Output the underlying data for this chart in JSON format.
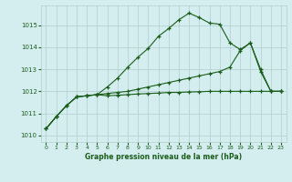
{
  "title": "Graphe pression niveau de la mer (hPa)",
  "background_color": "#d4eef0",
  "grid_color": "#b0cccc",
  "line_color": "#1a5c1a",
  "xlim": [
    -0.5,
    23.5
  ],
  "ylim": [
    1009.7,
    1015.9
  ],
  "yticks": [
    1010,
    1011,
    1012,
    1013,
    1014,
    1015
  ],
  "xticks": [
    0,
    1,
    2,
    3,
    4,
    5,
    6,
    7,
    8,
    9,
    10,
    11,
    12,
    13,
    14,
    15,
    16,
    17,
    18,
    19,
    20,
    21,
    22,
    23
  ],
  "series": {
    "line1": [
      1010.3,
      1010.85,
      1011.35,
      1011.75,
      1011.8,
      1011.85,
      1012.2,
      1012.6,
      1013.1,
      1013.55,
      1013.95,
      1014.5,
      1014.85,
      1015.25,
      1015.55,
      1015.35,
      1015.1,
      1015.05,
      1014.2,
      1013.9,
      1014.2,
      1012.9,
      1012.0,
      1012.0
    ],
    "line2": [
      1010.3,
      1010.85,
      1011.35,
      1011.75,
      1011.8,
      1011.85,
      1011.8,
      1011.82,
      1011.85,
      1011.88,
      1011.9,
      1011.92,
      1011.95,
      1011.95,
      1011.97,
      1011.98,
      1012.0,
      1012.0,
      1012.0,
      1012.0,
      1012.0,
      1012.0,
      1012.0,
      1012.0
    ],
    "line3": [
      1010.3,
      1010.85,
      1011.35,
      1011.75,
      1011.8,
      1011.85,
      1011.9,
      1011.95,
      1012.0,
      1012.1,
      1012.2,
      1012.3,
      1012.4,
      1012.5,
      1012.6,
      1012.7,
      1012.8,
      1012.9,
      1013.1,
      1013.85,
      1014.2,
      1013.0,
      1012.0,
      1012.0
    ]
  }
}
